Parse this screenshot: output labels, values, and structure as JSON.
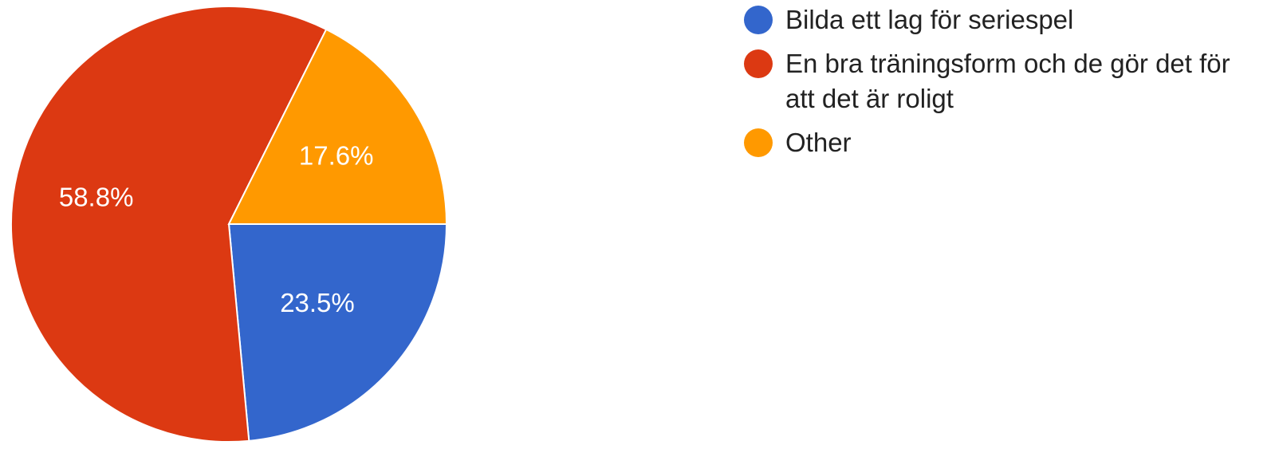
{
  "chart_data": {
    "type": "pie",
    "title": "",
    "slices": [
      {
        "label": "Bilda ett lag för seriespel",
        "value": 23.5,
        "display": "23.5%",
        "color": "#3366cc"
      },
      {
        "label": "En bra träningsform och de gör det för att det är roligt",
        "value": 58.8,
        "display": "58.8%",
        "color": "#dc3912"
      },
      {
        "label": "Other",
        "value": 17.6,
        "display": "17.6%",
        "color": "#ff9900"
      }
    ],
    "legend_placement": "right"
  }
}
